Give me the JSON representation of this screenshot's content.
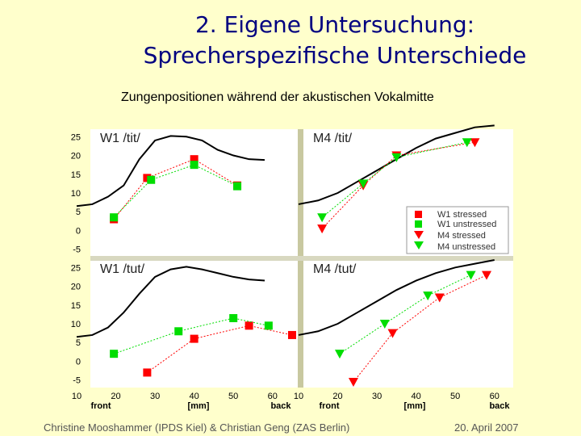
{
  "slide": {
    "title_line1": "2. Eigene Untersuchung:",
    "title_line2": "Sprecherspezifische Unterschiede",
    "subtitle": "Zungenpositionen während der akustischen Vokalmitte",
    "footer_left": "Christine Mooshammer (IPDS Kiel) & Christian Geng (ZAS Berlin)",
    "footer_right": "20. April 2007"
  },
  "colors": {
    "square": "#ff0000",
    "square_unstressed": "#00dd00",
    "triangle": "#ff0000",
    "triangle_unstressed": "#00dd00",
    "contour": "#000000",
    "panel_bg": "#ffffff"
  },
  "chart_data": {
    "type": "scatter",
    "ylim": [
      -7,
      27
    ],
    "xlim": [
      10,
      65
    ],
    "y_ticks": [
      "25",
      "20",
      "15",
      "10",
      "5",
      "0",
      "-5"
    ],
    "x_ticks": [
      "10",
      "20",
      "30",
      "40",
      "50",
      "60"
    ],
    "x_label_left": "front",
    "x_label_mid": "[mm]",
    "x_label_right": "back",
    "legend": [
      {
        "label": "W1 stressed",
        "marker": "square",
        "color": "#ff0000"
      },
      {
        "label": "W1 unstressed",
        "marker": "square",
        "color": "#00dd00"
      },
      {
        "label": "M4 stressed",
        "marker": "triangle",
        "color": "#ff0000"
      },
      {
        "label": "M4 unstressed",
        "marker": "triangle",
        "color": "#00dd00"
      }
    ],
    "panels": [
      {
        "title": "W1 /tit/",
        "contour": {
          "x": [
            10,
            14,
            18,
            22,
            26,
            30,
            34,
            38,
            42,
            46,
            50,
            54,
            58
          ],
          "y": [
            6.5,
            7,
            9,
            12,
            19,
            24,
            25.2,
            25,
            24,
            21.5,
            20,
            19,
            18.8
          ]
        },
        "series": [
          {
            "name": "stressed",
            "marker": "square",
            "color": "#ff0000",
            "x": [
              19.5,
              28,
              40,
              51
            ],
            "y": [
              3,
              14,
              19,
              12
            ]
          },
          {
            "name": "unstressed",
            "marker": "square",
            "color": "#00dd00",
            "x": [
              19.5,
              29,
              40,
              51
            ],
            "y": [
              3.5,
              13.5,
              17.5,
              11.8
            ]
          }
        ]
      },
      {
        "title": "M4 /tit/",
        "contour": {
          "x": [
            10,
            15,
            20,
            25,
            30,
            35,
            40,
            45,
            50,
            55,
            60
          ],
          "y": [
            7,
            8,
            10,
            13,
            16,
            19,
            22,
            24.5,
            26,
            27.5,
            28
          ]
        },
        "series": [
          {
            "name": "stressed",
            "marker": "triangle",
            "color": "#ff0000",
            "x": [
              16,
              26.5,
              35,
              55
            ],
            "y": [
              0.5,
              12,
              20,
              23.5
            ]
          },
          {
            "name": "unstressed",
            "marker": "triangle",
            "color": "#00dd00",
            "x": [
              16,
              26.5,
              35,
              53
            ],
            "y": [
              3.5,
              12.5,
              19.5,
              23.5
            ]
          }
        ]
      },
      {
        "title": "W1 /tut/",
        "contour": {
          "x": [
            10,
            14,
            18,
            22,
            26,
            30,
            34,
            38,
            42,
            46,
            50,
            54,
            58
          ],
          "y": [
            6.5,
            7,
            9,
            13,
            18,
            22.5,
            24.5,
            25.2,
            24.5,
            23.5,
            22.5,
            21.8,
            21.5
          ]
        },
        "series": [
          {
            "name": "stressed",
            "marker": "square",
            "color": "#ff0000",
            "x": [
              28,
              40,
              54,
              65
            ],
            "y": [
              -3,
              6,
              9.5,
              7
            ]
          },
          {
            "name": "unstressed",
            "marker": "square",
            "color": "#00dd00",
            "x": [
              19.5,
              36,
              50,
              59
            ],
            "y": [
              2,
              8,
              11.5,
              9.5
            ]
          }
        ]
      },
      {
        "title": "M4 /tut/",
        "contour": {
          "x": [
            10,
            15,
            20,
            25,
            30,
            35,
            40,
            45,
            50,
            55,
            60
          ],
          "y": [
            7,
            8,
            10,
            13,
            16,
            19,
            21.5,
            23.5,
            25,
            26,
            27
          ]
        },
        "series": [
          {
            "name": "stressed",
            "marker": "triangle",
            "color": "#ff0000",
            "x": [
              24,
              34,
              46,
              58
            ],
            "y": [
              -5.5,
              7.5,
              17,
              23
            ]
          },
          {
            "name": "unstressed",
            "marker": "triangle",
            "color": "#00dd00",
            "x": [
              20.5,
              32,
              43,
              54
            ],
            "y": [
              2,
              10,
              17.5,
              23
            ]
          }
        ]
      }
    ]
  }
}
